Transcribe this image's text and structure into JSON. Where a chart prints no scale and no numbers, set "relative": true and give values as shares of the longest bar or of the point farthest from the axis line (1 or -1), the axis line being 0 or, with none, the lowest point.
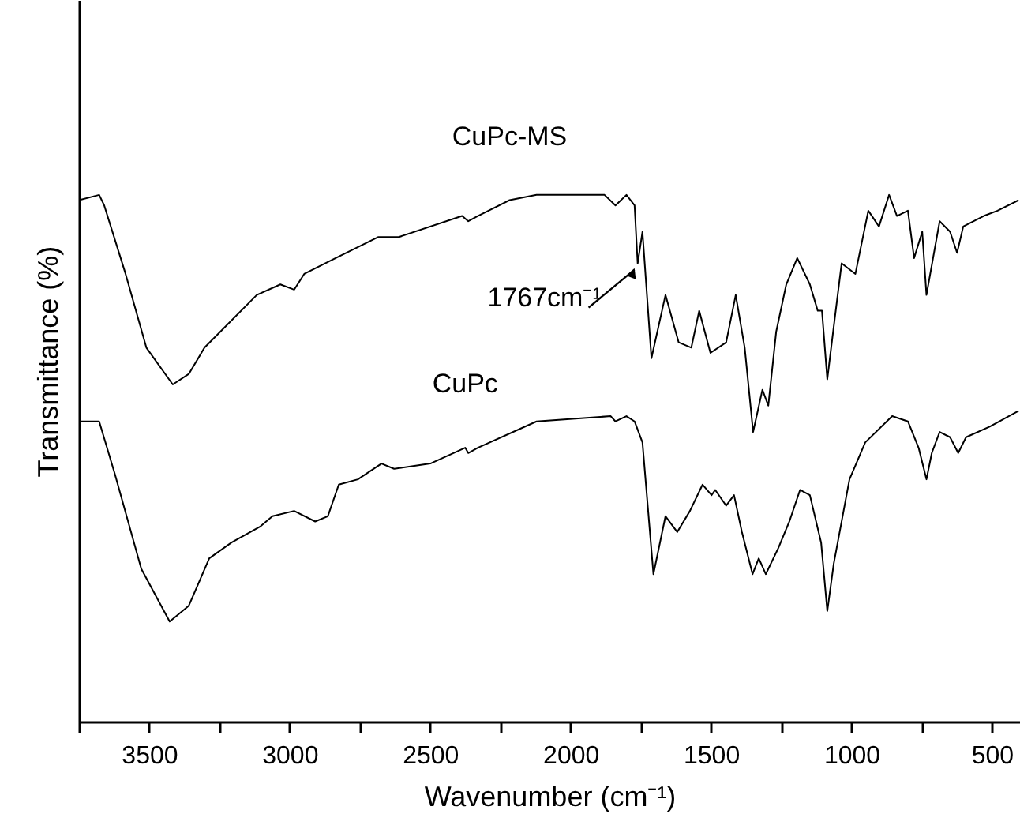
{
  "chart_data": {
    "type": "line",
    "relative": true,
    "xlabel": "Wavenumber (cm⁻¹)",
    "ylabel": "Transmittance (%)",
    "xlim": [
      3750,
      400
    ],
    "xticks": [
      {
        "value": 3750,
        "label": null
      },
      3500,
      {
        "value": 3250,
        "label": null
      },
      3000,
      {
        "value": 2750,
        "label": null
      },
      2500,
      {
        "value": 2250,
        "label": null
      },
      2000,
      {
        "value": 1750,
        "label": null
      },
      1500,
      {
        "value": 1250,
        "label": null
      },
      1000,
      {
        "value": 750,
        "label": null
      },
      500
    ],
    "grid": false,
    "marker": "none",
    "line_style": "solid",
    "tick_labels": "x",
    "annotations": [
      {
        "text": "1767cm⁻¹",
        "x": 1767,
        "y": 0.87
      }
    ],
    "series": [
      {
        "name": "CuPc-MS",
        "color": "#000000",
        "x": [
          3750,
          3678,
          3660,
          3584,
          3510,
          3416,
          3359,
          3303,
          3247,
          3117,
          3033,
          2984,
          2948,
          2836,
          2684,
          2611,
          2386,
          2364,
          2330,
          2217,
          2121,
          1879,
          1840,
          1801,
          1772,
          1761,
          1744,
          1712,
          1662,
          1615,
          1570,
          1542,
          1502,
          1446,
          1412,
          1380,
          1350,
          1317,
          1296,
          1268,
          1232,
          1193,
          1148,
          1120,
          1105,
          1086,
          1063,
          1035,
          986,
          940,
          902,
          866,
          838,
          799,
          777,
          748,
          733,
          686,
          649,
          624,
          602,
          529,
          480,
          405
        ],
        "values": [
          0.99,
          1.0,
          0.98,
          0.85,
          0.71,
          0.64,
          0.66,
          0.71,
          0.74,
          0.81,
          0.83,
          0.82,
          0.85,
          0.88,
          0.92,
          0.92,
          0.96,
          0.95,
          0.96,
          0.99,
          1.0,
          1.0,
          0.98,
          1.0,
          0.98,
          0.87,
          0.93,
          0.69,
          0.81,
          0.72,
          0.71,
          0.78,
          0.7,
          0.72,
          0.81,
          0.71,
          0.55,
          0.63,
          0.6,
          0.74,
          0.83,
          0.88,
          0.83,
          0.78,
          0.78,
          0.65,
          0.75,
          0.87,
          0.85,
          0.97,
          0.94,
          1.0,
          0.96,
          0.97,
          0.88,
          0.93,
          0.81,
          0.95,
          0.93,
          0.89,
          0.94,
          0.96,
          0.97,
          0.99
        ]
      },
      {
        "name": "CuPc",
        "color": "#000000",
        "x": [
          3750,
          3678,
          3622,
          3528,
          3427,
          3359,
          3286,
          3207,
          3106,
          3061,
          2984,
          2909,
          2864,
          2825,
          2757,
          2673,
          2628,
          2499,
          2375,
          2364,
          2330,
          2121,
          1857,
          1840,
          1801,
          1772,
          1744,
          1705,
          1662,
          1620,
          1575,
          1530,
          1498,
          1485,
          1446,
          1418,
          1390,
          1352,
          1330,
          1305,
          1260,
          1221,
          1183,
          1148,
          1108,
          1086,
          1063,
          1007,
          951,
          855,
          799,
          761,
          733,
          714,
          686,
          649,
          620,
          592,
          508,
          405
        ],
        "values": [
          0.57,
          0.57,
          0.47,
          0.29,
          0.19,
          0.22,
          0.31,
          0.34,
          0.37,
          0.39,
          0.4,
          0.38,
          0.39,
          0.45,
          0.46,
          0.49,
          0.48,
          0.49,
          0.52,
          0.51,
          0.52,
          0.57,
          0.58,
          0.57,
          0.58,
          0.57,
          0.53,
          0.28,
          0.39,
          0.36,
          0.4,
          0.45,
          0.43,
          0.44,
          0.41,
          0.43,
          0.36,
          0.28,
          0.31,
          0.28,
          0.33,
          0.38,
          0.44,
          0.43,
          0.34,
          0.21,
          0.3,
          0.46,
          0.53,
          0.58,
          0.57,
          0.52,
          0.46,
          0.51,
          0.55,
          0.54,
          0.51,
          0.54,
          0.56,
          0.59
        ]
      }
    ]
  }
}
